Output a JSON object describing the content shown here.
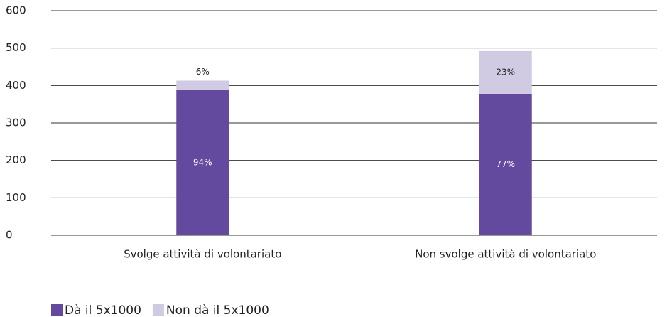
{
  "chart_data": {
    "type": "bar",
    "stacked": true,
    "categories": [
      "Svolge attività di volontariato",
      "Non svolge attività di volontariato"
    ],
    "series": [
      {
        "name": "Dà il 5x1000",
        "color": "#634a9e",
        "values": [
          388,
          378
        ],
        "labels": [
          "94%",
          "77%"
        ]
      },
      {
        "name": "Non dà il 5x1000",
        "color": "#d0cae3",
        "values": [
          25,
          114
        ],
        "labels": [
          "6%",
          "23%"
        ]
      }
    ],
    "ylim": [
      0,
      600
    ],
    "yticks": [
      0,
      100,
      200,
      300,
      400,
      500,
      600
    ],
    "grid": true,
    "legend": "bottom-left"
  }
}
